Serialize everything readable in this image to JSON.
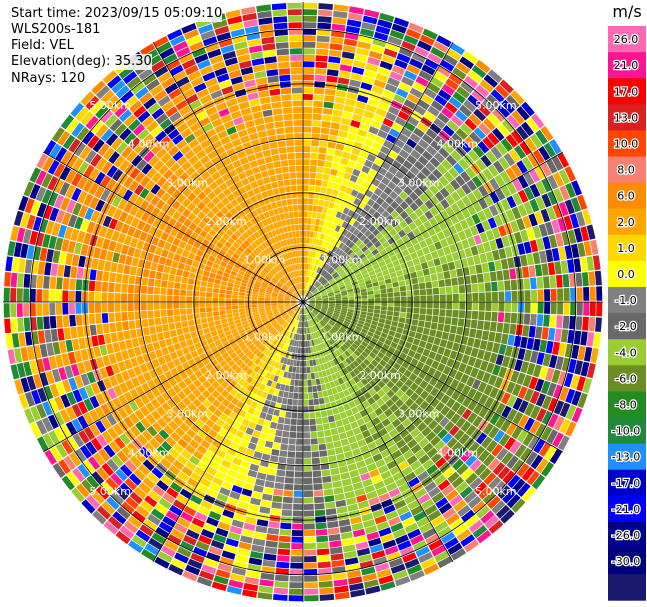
{
  "header": {
    "start_time": "Start time: 2023/09/15 05:09:10",
    "instrument": "WLS200s-181",
    "field": "Field: VEL",
    "elevation": "Elevation(deg): 35.30",
    "nrays": "NRays: 120"
  },
  "chart_data": {
    "type": "heatmap",
    "projection": "polar-ppi",
    "field": "VEL",
    "units": "m/s",
    "nrays": 120,
    "elevation_deg": 35.3,
    "range_km": [
      0,
      5.5
    ],
    "range_rings_km": [
      1,
      2,
      3,
      4,
      5
    ],
    "ring_label_text": [
      "1.00km",
      "2.00km",
      "3.00km",
      "4.00km",
      "5.00km"
    ],
    "spokes_deg": [
      0,
      30,
      60,
      90,
      120,
      150,
      180,
      210,
      240,
      270,
      300,
      330
    ],
    "colorbar": {
      "title": "m/s",
      "ticks": [
        "26.0",
        "21.0",
        "17.0",
        "13.0",
        "10.0",
        "8.0",
        "6.0",
        "2.0",
        "1.0",
        "0.0",
        "-1.0",
        "-2.0",
        "-4.0",
        "-6.0",
        "-8.0",
        "-10.0",
        "-13.0",
        "-17.0",
        "-21.0",
        "-26.0",
        "-30.0"
      ],
      "colors": [
        "#ff69b4",
        "#ff1493",
        "#ff0000",
        "#dc2020",
        "#ff4500",
        "#fa8072",
        "#ff8c00",
        "#ffa500",
        "#ffd700",
        "#ffff00",
        "#808080",
        "#696969",
        "#9acd32",
        "#6b8e23",
        "#228b22",
        "#1f8a3a",
        "#1e90ff",
        "#0000cd",
        "#0000ff",
        "#00008b",
        "#000080",
        "#191970"
      ]
    },
    "velocity_pattern": {
      "description_values": "toward radar (negative, green) to the east/north-east, away (positive, yellow-orange) to the west/south-west",
      "peak_positive": 6.0,
      "peak_negative": -6.0
    }
  }
}
